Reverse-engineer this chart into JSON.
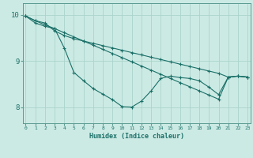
{
  "xlabel": "Humidex (Indice chaleur)",
  "bg_color": "#cceae4",
  "grid_color": "#aad4cc",
  "line_color": "#1a7068",
  "spine_color": "#5a9a90",
  "x_ticks": [
    0,
    1,
    2,
    3,
    4,
    5,
    6,
    7,
    8,
    9,
    10,
    11,
    12,
    13,
    14,
    15,
    16,
    17,
    18,
    19,
    20,
    21,
    22,
    23
  ],
  "y_ticks": [
    8,
    9,
    10
  ],
  "xlim": [
    -0.3,
    23.3
  ],
  "ylim": [
    7.65,
    10.25
  ],
  "s1y": [
    9.97,
    9.87,
    9.78,
    9.7,
    9.61,
    9.52,
    9.43,
    9.34,
    9.25,
    9.16,
    9.07,
    8.98,
    8.89,
    8.8,
    8.71,
    8.62,
    8.53,
    8.44,
    8.35,
    8.26,
    8.17,
    8.65,
    8.67,
    8.65
  ],
  "s2y": [
    9.97,
    9.82,
    9.75,
    9.7,
    9.28,
    8.75,
    8.57,
    8.4,
    8.28,
    8.16,
    8.01,
    8.0,
    8.13,
    8.35,
    8.62,
    8.67,
    8.64,
    8.62,
    8.57,
    8.43,
    8.27,
    8.65,
    8.67,
    8.65
  ],
  "s3y": [
    9.97,
    9.87,
    9.82,
    9.65,
    9.55,
    9.48,
    9.43,
    9.38,
    9.33,
    9.28,
    9.23,
    9.18,
    9.13,
    9.08,
    9.03,
    8.98,
    8.93,
    8.88,
    8.83,
    8.78,
    8.73,
    8.65,
    8.67,
    8.65
  ]
}
